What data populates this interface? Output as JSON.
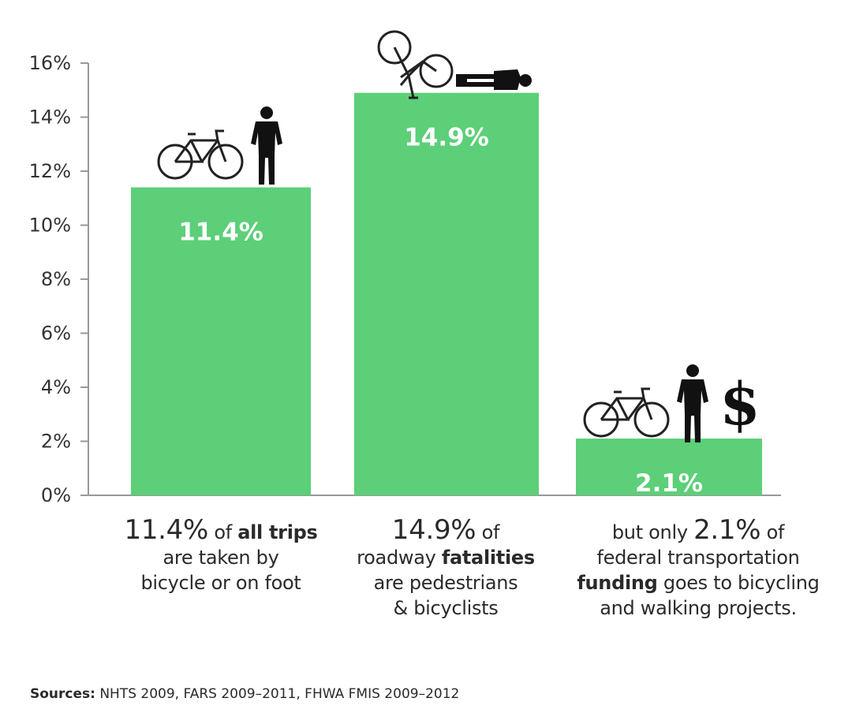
{
  "chart_data": {
    "type": "bar",
    "categories": [
      "all trips by bicycle or on foot",
      "roadway fatalities pedestrians & bicyclists",
      "federal transportation funding to bicycling and walking"
    ],
    "values": [
      11.4,
      14.9,
      2.1
    ],
    "value_labels": [
      "11.4%",
      "14.9%",
      "2.1%"
    ],
    "ylim": [
      0,
      16
    ],
    "yticks": [
      0,
      2,
      4,
      6,
      8,
      10,
      12,
      14,
      16
    ],
    "ytick_labels": [
      "0%",
      "2%",
      "4%",
      "6%",
      "8%",
      "10%",
      "12%",
      "14%",
      "16%"
    ],
    "bar_color": "#5ccf78",
    "grid": false
  },
  "captions": [
    {
      "pct": "11.4%",
      "pre": " of ",
      "bold": "all trips",
      "line2": "are taken by",
      "line3": "bicycle or on foot"
    },
    {
      "pct": "14.9%",
      "pre": " of",
      "line2a": "roadway ",
      "bold": "fatalities",
      "line3": "are pedestrians",
      "line4": "& bicyclists"
    },
    {
      "pre": "but only ",
      "pct": "2.1%",
      "post": " of",
      "line2": "federal transportation",
      "bold": "funding",
      "line3b": " goes to bicycling",
      "line4": "and walking projects."
    }
  ],
  "sources": {
    "label": "Sources:",
    "text": " NHTS 2009, FARS 2009–2011, FHWA FMIS 2009–2012"
  },
  "icons": [
    "bicycle-icon",
    "pedestrian-icon",
    "fallen-bicycle-icon",
    "fallen-pedestrian-icon",
    "dollar-icon"
  ]
}
